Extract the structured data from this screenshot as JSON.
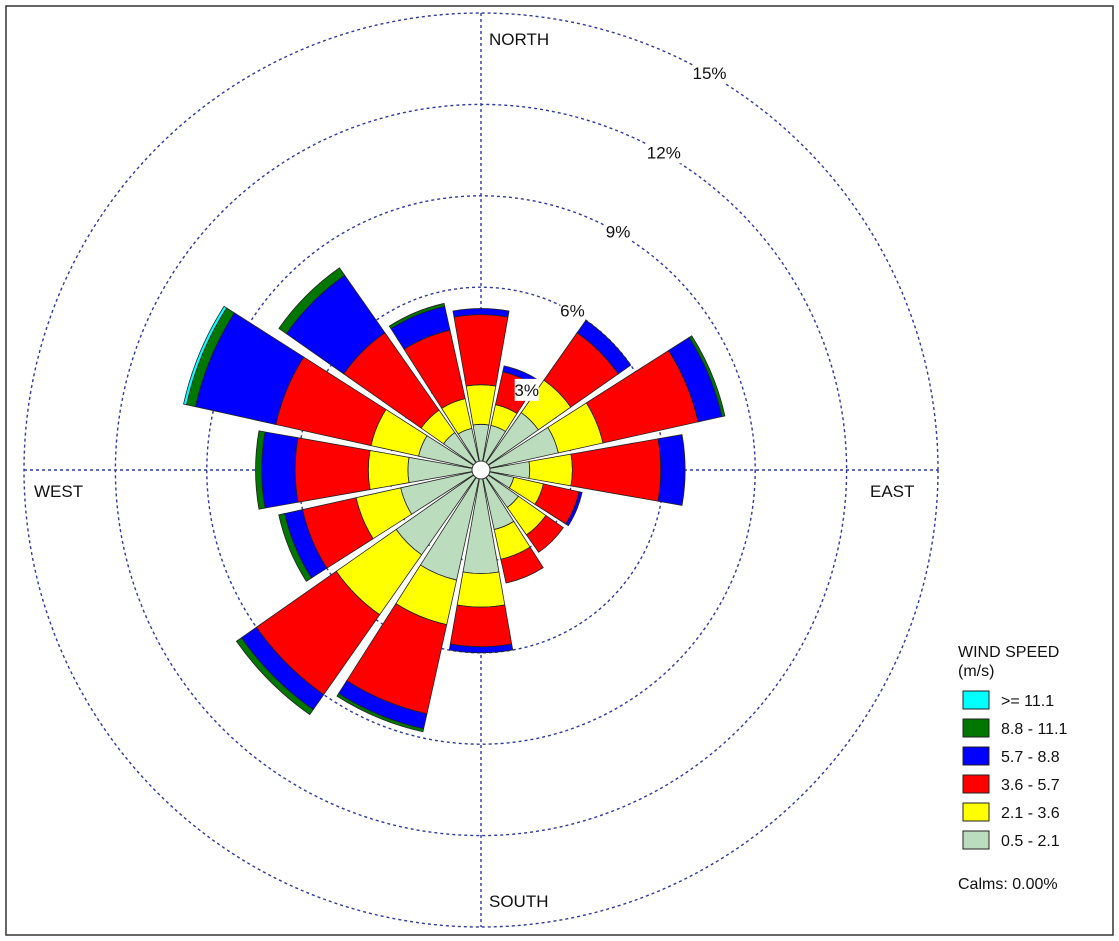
{
  "chart_data": {
    "type": "wind-rose",
    "title": "",
    "direction_labels": {
      "north": "NORTH",
      "east": "EAST",
      "south": "SOUTH",
      "west": "WEST"
    },
    "ring_values": [
      3,
      6,
      9,
      12,
      15
    ],
    "ring_labels": [
      "3%",
      "6%",
      "9%",
      "12%",
      "15%"
    ],
    "rmax": 15,
    "sector_count": 16,
    "sector_width_deg": 20,
    "legend": {
      "title_line1": "WIND SPEED",
      "title_line2": "(m/s)",
      "placement": "bottom-right",
      "calms": "Calms: 0.00%"
    },
    "speed_bins": [
      {
        "label": "0.5 - 2.1",
        "color": "#bcdcbe"
      },
      {
        "label": "2.1 - 3.6",
        "color": "#ffff00"
      },
      {
        "label": "3.6 - 5.7",
        "color": "#ff0000"
      },
      {
        "label": "5.7 - 8.8",
        "color": "#0000ff"
      },
      {
        "label": "8.8 - 11.1",
        "color": "#007700"
      },
      {
        "label": ">= 11.1",
        "color": "#00ffff"
      }
    ],
    "directions": [
      {
        "dir": "N",
        "angle": 0,
        "cumulative": [
          1.5,
          2.8,
          5.1,
          5.3,
          5.3,
          5.3
        ]
      },
      {
        "dir": "NNE",
        "angle": 22.5,
        "cumulative": [
          1.5,
          2.2,
          3.3,
          3.5,
          3.5,
          3.5
        ]
      },
      {
        "dir": "NE",
        "angle": 45,
        "cumulative": [
          2.3,
          3.6,
          5.5,
          6.0,
          6.0,
          6.0
        ]
      },
      {
        "dir": "ENE",
        "angle": 67.5,
        "cumulative": [
          2.6,
          4.1,
          7.3,
          8.1,
          8.2,
          8.2
        ]
      },
      {
        "dir": "E",
        "angle": 90,
        "cumulative": [
          1.6,
          3.0,
          5.9,
          6.7,
          6.7,
          6.7
        ]
      },
      {
        "dir": "ESE",
        "angle": 112.5,
        "cumulative": [
          1.1,
          2.1,
          3.3,
          3.4,
          3.4,
          3.4
        ]
      },
      {
        "dir": "SE",
        "angle": 135,
        "cumulative": [
          1.5,
          2.6,
          3.3,
          3.3,
          3.3,
          3.3
        ]
      },
      {
        "dir": "SSE",
        "angle": 157.5,
        "cumulative": [
          2.0,
          3.0,
          3.8,
          3.8,
          3.8,
          3.8
        ]
      },
      {
        "dir": "S",
        "angle": 180,
        "cumulative": [
          3.4,
          4.5,
          5.8,
          6.0,
          6.0,
          6.0
        ]
      },
      {
        "dir": "SSW",
        "angle": 202.5,
        "cumulative": [
          3.7,
          5.2,
          8.2,
          8.7,
          8.8,
          8.8
        ]
      },
      {
        "dir": "SW",
        "angle": 225,
        "cumulative": [
          3.4,
          5.8,
          9.0,
          9.6,
          9.8,
          9.8
        ]
      },
      {
        "dir": "WSW",
        "angle": 247.5,
        "cumulative": [
          2.7,
          4.2,
          6.0,
          6.6,
          6.8,
          6.8
        ]
      },
      {
        "dir": "W",
        "angle": 270,
        "cumulative": [
          2.4,
          3.7,
          6.1,
          7.2,
          7.4,
          7.4
        ]
      },
      {
        "dir": "WNW",
        "angle": 292.5,
        "cumulative": [
          2.1,
          3.7,
          6.9,
          9.6,
          9.9,
          10.0
        ]
      },
      {
        "dir": "NW",
        "angle": 315,
        "cumulative": [
          1.5,
          2.4,
          5.5,
          7.8,
          8.1,
          8.1
        ]
      },
      {
        "dir": "NNW",
        "angle": 337.5,
        "cumulative": [
          1.4,
          2.4,
          4.7,
          5.5,
          5.6,
          5.6
        ]
      }
    ]
  }
}
